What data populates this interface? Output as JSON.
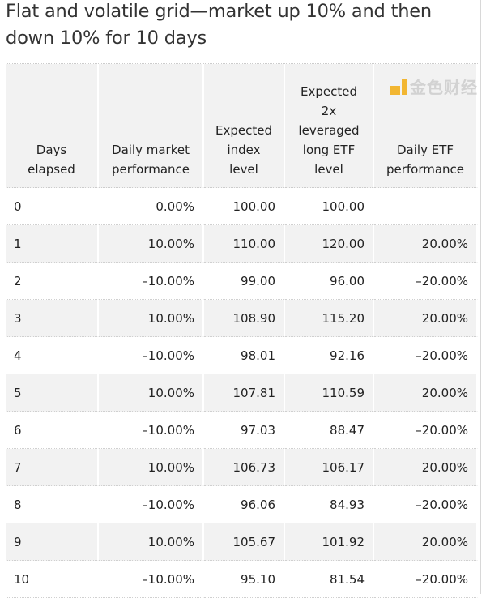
{
  "title": "Flat and volatile grid—market up 10% and then down 10% for 10 days",
  "table": {
    "headers": [
      "Days elapsed",
      "Daily market performance",
      "Expected index level",
      "Expected 2x leveraged long ETF level",
      "Daily ETF performance"
    ],
    "rows": [
      [
        "0",
        "0.00%",
        "100.00",
        "100.00",
        ""
      ],
      [
        "1",
        "10.00%",
        "110.00",
        "120.00",
        "20.00%"
      ],
      [
        "2",
        "–10.00%",
        "99.00",
        "96.00",
        "–20.00%"
      ],
      [
        "3",
        "10.00%",
        "108.90",
        "115.20",
        "20.00%"
      ],
      [
        "4",
        "–10.00%",
        "98.01",
        "92.16",
        "–20.00%"
      ],
      [
        "5",
        "10.00%",
        "107.81",
        "110.59",
        "20.00%"
      ],
      [
        "6",
        "–10.00%",
        "97.03",
        "88.47",
        "–20.00%"
      ],
      [
        "7",
        "10.00%",
        "106.73",
        "106.17",
        "20.00%"
      ],
      [
        "8",
        "–10.00%",
        "96.06",
        "84.93",
        "–20.00%"
      ],
      [
        "9",
        "10.00%",
        "105.67",
        "101.92",
        "20.00%"
      ],
      [
        "10",
        "–10.00%",
        "95.10",
        "81.54",
        "–20.00%"
      ]
    ]
  },
  "watermark": {
    "text": "金色财经",
    "color": "#f2b01e"
  }
}
